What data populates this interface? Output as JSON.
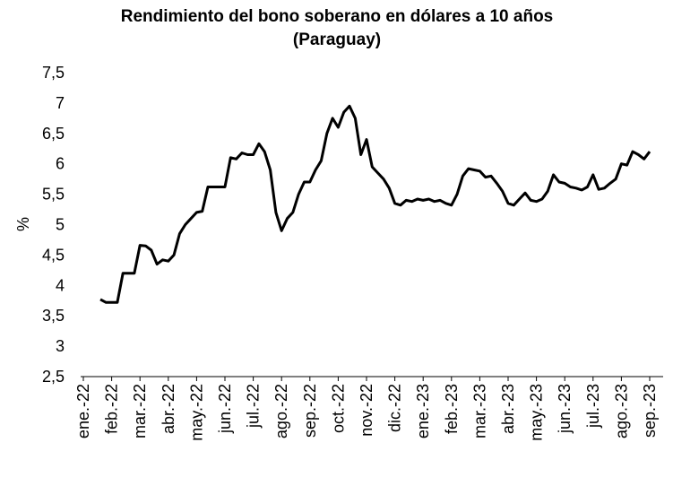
{
  "chart_data": {
    "type": "line",
    "title": [
      "Rendimiento del bono soberano en dólares a 10 años",
      "(Paraguay)"
    ],
    "ylabel": "%",
    "categories": [
      "ene.-22",
      "feb.-22",
      "mar.-22",
      "abr.-22",
      "may.-22",
      "jun.-22",
      "jul.-22",
      "ago.-22",
      "sep.-22",
      "oct.-22",
      "nov.-22",
      "dic.-22",
      "ene.-23",
      "feb.-23",
      "mar.-23",
      "abr.-23",
      "may.-23",
      "jun.-23",
      "jul.-23",
      "ago.-23",
      "sep.-23"
    ],
    "x": [
      "ene.-22",
      "ene.-22",
      "ene.-22",
      "ene.-22",
      "ene.-22",
      "feb.-22",
      "feb.-22",
      "feb.-22",
      "feb.-22",
      "feb.-22",
      "mar.-22",
      "mar.-22",
      "mar.-22",
      "mar.-22",
      "mar.-22",
      "abr.-22",
      "abr.-22",
      "abr.-22",
      "abr.-22",
      "abr.-22",
      "may.-22",
      "may.-22",
      "may.-22",
      "may.-22",
      "may.-22",
      "jun.-22",
      "jun.-22",
      "jun.-22",
      "jun.-22",
      "jun.-22",
      "jul.-22",
      "jul.-22",
      "jul.-22",
      "jul.-22",
      "jul.-22",
      "ago.-22",
      "ago.-22",
      "ago.-22",
      "ago.-22",
      "ago.-22",
      "sep.-22",
      "sep.-22",
      "sep.-22",
      "sep.-22",
      "sep.-22",
      "oct.-22",
      "oct.-22",
      "oct.-22",
      "oct.-22",
      "oct.-22",
      "nov.-22",
      "nov.-22",
      "nov.-22",
      "nov.-22",
      "nov.-22",
      "dic.-22",
      "dic.-22",
      "dic.-22",
      "dic.-22",
      "dic.-22",
      "ene.-23",
      "ene.-23",
      "ene.-23",
      "ene.-23",
      "ene.-23",
      "feb.-23",
      "feb.-23",
      "feb.-23",
      "feb.-23",
      "feb.-23",
      "mar.-23",
      "mar.-23",
      "mar.-23",
      "mar.-23",
      "mar.-23",
      "abr.-23",
      "abr.-23",
      "abr.-23",
      "abr.-23",
      "abr.-23",
      "may.-23",
      "may.-23",
      "may.-23",
      "may.-23",
      "may.-23",
      "jun.-23",
      "jun.-23",
      "jun.-23",
      "jun.-23",
      "jun.-23",
      "jul.-23",
      "jul.-23",
      "jul.-23",
      "jul.-23",
      "jul.-23",
      "ago.-23",
      "ago.-23",
      "ago.-23",
      "ago.-23",
      "ago.-23",
      "sep.-23"
    ],
    "values": [
      null,
      null,
      null,
      3.77,
      3.72,
      3.72,
      3.72,
      4.2,
      4.2,
      4.2,
      4.66,
      4.65,
      4.58,
      4.35,
      4.42,
      4.4,
      4.5,
      4.85,
      5.0,
      5.1,
      5.2,
      5.22,
      5.62,
      5.62,
      5.62,
      5.62,
      6.1,
      6.08,
      6.18,
      6.15,
      6.15,
      6.33,
      6.2,
      5.9,
      5.2,
      4.9,
      5.1,
      5.2,
      5.5,
      5.7,
      5.7,
      5.9,
      6.05,
      6.5,
      6.75,
      6.6,
      6.85,
      6.95,
      6.75,
      6.15,
      6.4,
      5.95,
      5.85,
      5.75,
      5.6,
      5.35,
      5.32,
      5.4,
      5.38,
      5.42,
      5.4,
      5.42,
      5.38,
      5.4,
      5.35,
      5.32,
      5.5,
      5.8,
      5.92,
      5.9,
      5.88,
      5.78,
      5.8,
      5.68,
      5.55,
      5.35,
      5.32,
      5.42,
      5.52,
      5.4,
      5.38,
      5.42,
      5.55,
      5.82,
      5.7,
      5.68,
      5.62,
      5.6,
      5.57,
      5.62,
      5.82,
      5.58,
      5.6,
      5.68,
      5.75,
      6.0,
      5.98,
      6.2,
      6.15,
      6.08,
      6.2
    ],
    "color": "#000000",
    "ylim": [
      2.5,
      7.5
    ],
    "yticks": [
      {
        "value": 2.5,
        "label": "2,5"
      },
      3,
      {
        "value": 3.5,
        "label": "3,5"
      },
      4,
      {
        "value": 4.5,
        "label": "4,5"
      },
      5,
      {
        "value": 5.5,
        "label": "5,5"
      },
      6,
      {
        "value": 6.5,
        "label": "6,5"
      },
      7,
      {
        "value": 7.5,
        "label": "7,5"
      }
    ],
    "grid": false
  }
}
